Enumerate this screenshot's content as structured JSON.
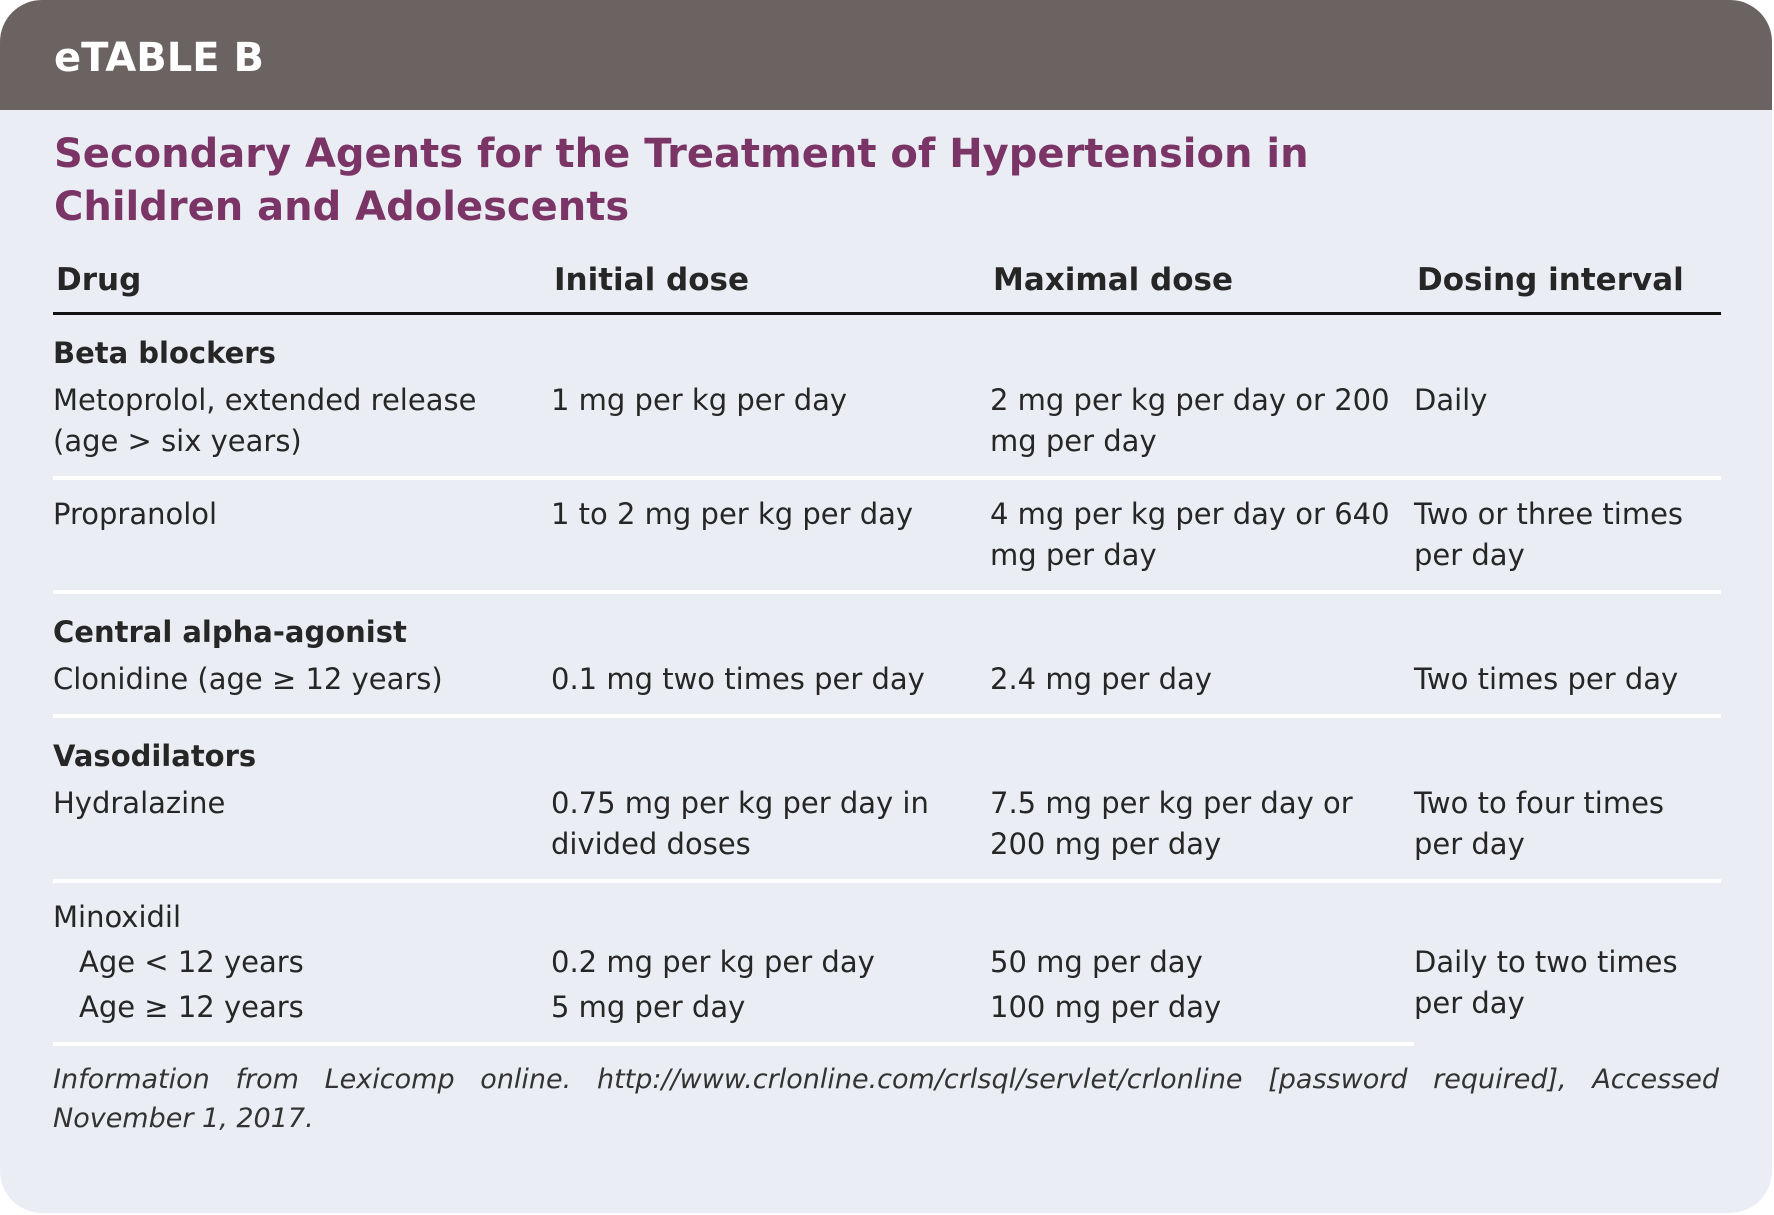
{
  "header": {
    "label": "eTABLE B"
  },
  "title": "Secondary Agents for the Treatment of Hypertension in Children and Adolescents",
  "table": {
    "columns": [
      "Drug",
      "Initial dose",
      "Maximal dose",
      "Dosing interval"
    ],
    "sections": [
      {
        "heading": "Beta blockers",
        "rows": [
          {
            "drug": "Metoprolol, extended release (age > six years)",
            "initial": "1 mg per kg per day",
            "maximal": "2 mg per kg per day or 200 mg per day",
            "interval": "Daily"
          },
          {
            "drug": "Propranolol",
            "initial": "1 to 2 mg per kg per day",
            "maximal": "4 mg per kg per day or 640 mg per day",
            "interval": "Two or three times per day"
          }
        ]
      },
      {
        "heading": "Central alpha-agonist",
        "rows": [
          {
            "drug": "Clonidine (age ≥ 12 years)",
            "initial": "0.1 mg two times per day",
            "maximal": "2.4 mg per day",
            "interval": "Two times per day"
          }
        ]
      },
      {
        "heading": "Vasodilators",
        "rows": [
          {
            "drug": "Hydralazine",
            "initial": "0.75 mg per kg per day in divided doses",
            "maximal": "7.5 mg per kg per day or 200 mg per day",
            "interval": "Two to four times per day"
          },
          {
            "drug": "Minoxidil",
            "interval": "Daily to two times per day",
            "subrows": [
              {
                "drug": "Age < 12 years",
                "initial": "0.2 mg per kg per day",
                "maximal": "50 mg per day"
              },
              {
                "drug": "Age ≥ 12 years",
                "initial": "5 mg per day",
                "maximal": "100 mg per day"
              }
            ]
          }
        ]
      }
    ]
  },
  "footnote": "Information from Lexicomp online. http://www.crlonline.com/crlsql/servlet/crlonline [password required], Accessed November 1, 2017."
}
